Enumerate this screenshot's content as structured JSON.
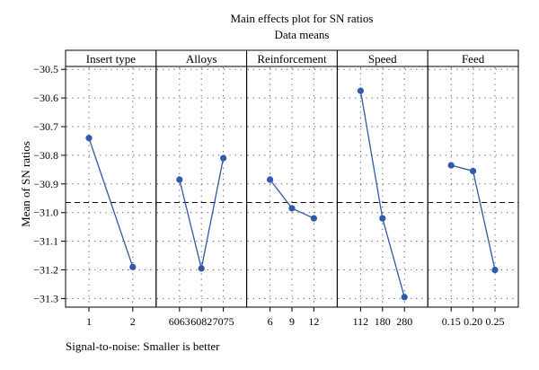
{
  "chart_data": {
    "type": "line",
    "title": "Main effects plot for SN ratios",
    "subtitle": "Data means",
    "ylabel": "Mean of SN ratios",
    "footnote": "Signal-to-noise: Smaller is better",
    "ylim": [
      -31.33,
      -30.49
    ],
    "yticks": [
      -30.5,
      -30.6,
      -30.7,
      -30.8,
      -30.9,
      -31.0,
      -31.1,
      -31.2,
      -31.3
    ],
    "ytick_labels": [
      "−30.5",
      "−30.6",
      "−30.7",
      "−30.8",
      "−30.9",
      "−31.0",
      "−31.1",
      "−31.2",
      "−31.3"
    ],
    "reference_line": -30.965,
    "grid": true,
    "colors": {
      "series": "#2E5AA8",
      "reference": "#000000",
      "grid": "#555555"
    },
    "facets": [
      {
        "name": "Insert type",
        "categories": [
          "1",
          "2"
        ],
        "values": [
          -30.74,
          -31.19
        ]
      },
      {
        "name": "Alloys",
        "categories": [
          "6063",
          "6082",
          "7075"
        ],
        "values": [
          -30.885,
          -31.195,
          -30.81
        ]
      },
      {
        "name": "Reinforcement",
        "categories": [
          "6",
          "9",
          "12"
        ],
        "values": [
          -30.885,
          -30.985,
          -31.02
        ]
      },
      {
        "name": "Speed",
        "categories": [
          "112",
          "180",
          "280"
        ],
        "values": [
          -30.575,
          -31.02,
          -31.295
        ]
      },
      {
        "name": "Feed",
        "categories": [
          "0.15",
          "0.20",
          "0.25"
        ],
        "values": [
          -30.835,
          -30.855,
          -31.2
        ]
      }
    ]
  }
}
